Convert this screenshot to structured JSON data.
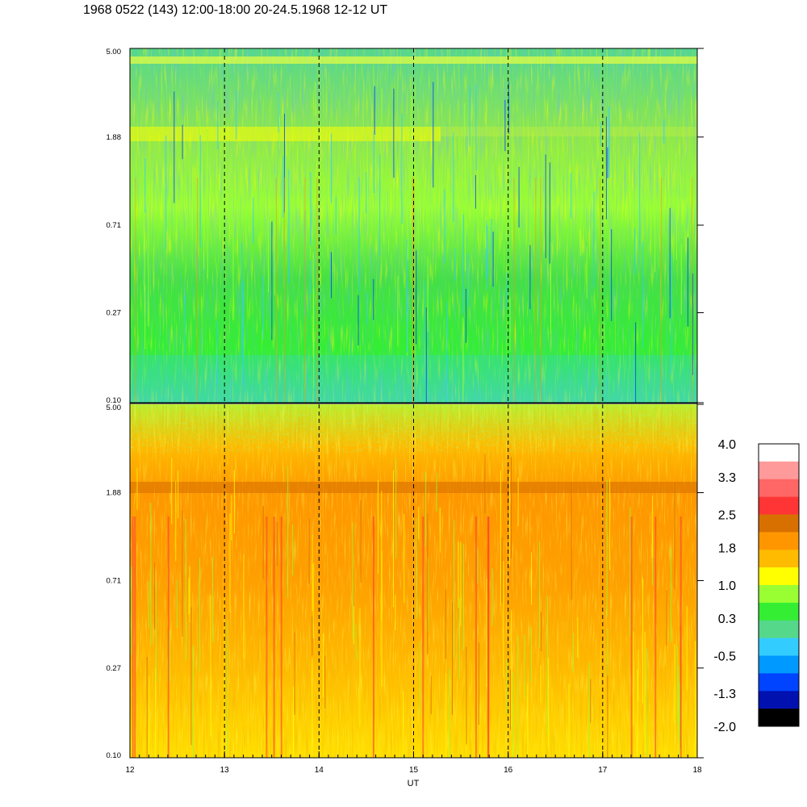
{
  "title": "1968 0522 (143) 12:00-18:00 20-24.5.1968  12-12 UT",
  "chart_data": {
    "type": "heatmap",
    "title": "1968 0522 (143) 12:00-18:00 20-24.5.1968  12-12 UT",
    "xlabel": "UT",
    "ylabel": "",
    "x_ticks": [
      "12",
      "13",
      "14",
      "15",
      "16",
      "17",
      "18"
    ],
    "xlim": [
      12,
      18
    ],
    "x_dashed_gridlines": [
      13,
      14,
      15,
      16,
      17
    ],
    "y_scale": "log",
    "panels": [
      {
        "name": "",
        "ylim": [
          0.1,
          5.0
        ],
        "y_ticks": [
          "0.10",
          "0.27",
          "0.71",
          "1.88",
          "5.00"
        ],
        "dominant_levels": "green / cyan (0.3 to 1.0)",
        "features": "yellow band near 1.88 from 12 to ~15.3 UT; yellow band near 5.00"
      },
      {
        "name": "",
        "ylim": [
          0.1,
          5.0
        ],
        "y_ticks": [
          "0.10",
          "0.27",
          "0.71",
          "1.88",
          "5.00"
        ],
        "dominant_levels": "yellow / orange (1.0 to 2.5)",
        "features": "dark orange band near 1.88 across 12-18 UT"
      }
    ],
    "colorbar": {
      "labels": [
        "4.0",
        "3.3",
        "2.5",
        "1.8",
        "1.0",
        "0.3",
        "-0.5",
        "-1.3",
        "-2.0"
      ],
      "range": [
        -2.0,
        4.0
      ],
      "colors_top_to_bottom": [
        "#ffffff",
        "#ff9a9a",
        "#ff6666",
        "#ff3535",
        "#d87000",
        "#ff9600",
        "#ffbb00",
        "#ffff00",
        "#99ff33",
        "#33ee33",
        "#55d88a",
        "#33ccff",
        "#0099ff",
        "#0044ff",
        "#0011b0",
        "#000000"
      ]
    }
  }
}
